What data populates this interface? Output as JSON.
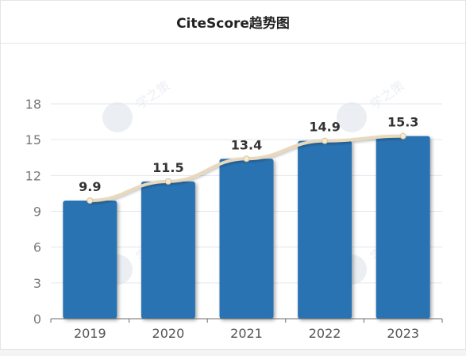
{
  "header": {
    "title": "CiteScore趋势图"
  },
  "chart_data": {
    "type": "bar",
    "title": "CiteScore趋势图",
    "categories": [
      "2019",
      "2020",
      "2021",
      "2022",
      "2023"
    ],
    "values": [
      9.9,
      11.5,
      13.4,
      14.9,
      15.3
    ],
    "data_labels": [
      "9.9",
      "11.5",
      "13.4",
      "14.9",
      "15.3"
    ],
    "overlay": "smoothed line through bar tops",
    "y_ticks": [
      "0",
      "3",
      "6",
      "9",
      "12",
      "15",
      "18"
    ],
    "ylim": [
      0,
      18
    ],
    "xlabel": "",
    "ylabel": "",
    "grid": true,
    "legend": "none",
    "bar_color": "#2a73b2",
    "line_color": "#e8d9bd",
    "watermark": "学之策"
  }
}
